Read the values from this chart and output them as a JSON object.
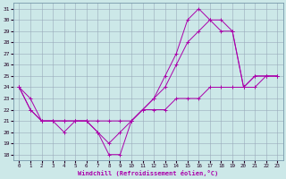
{
  "xlabel": "Windchill (Refroidissement éolien,°C)",
  "xlim": [
    -0.5,
    23.5
  ],
  "ylim": [
    17.5,
    31.5
  ],
  "yticks": [
    18,
    19,
    20,
    21,
    22,
    23,
    24,
    25,
    26,
    27,
    28,
    29,
    30,
    31
  ],
  "xticks": [
    0,
    1,
    2,
    3,
    4,
    5,
    6,
    7,
    8,
    9,
    10,
    11,
    12,
    13,
    14,
    15,
    16,
    17,
    18,
    19,
    20,
    21,
    22,
    23
  ],
  "bg_color": "#cce8e8",
  "line_color": "#aa00aa",
  "grid_color": "#99aabb",
  "lines": [
    {
      "x": [
        0,
        1,
        2,
        3,
        4,
        5,
        6,
        7,
        8,
        9,
        10,
        11,
        12,
        13,
        14,
        15,
        16,
        17,
        18,
        19,
        20,
        21,
        22,
        23
      ],
      "y": [
        24,
        23,
        21,
        21,
        21,
        21,
        21,
        20,
        18,
        18,
        21,
        22,
        23,
        25,
        27,
        30,
        31,
        30,
        30,
        29,
        24,
        25,
        25,
        25
      ]
    },
    {
      "x": [
        0,
        1,
        2,
        3,
        4,
        5,
        6,
        7,
        8,
        9,
        10,
        11,
        12,
        13,
        14,
        15,
        16,
        17,
        18,
        19,
        20,
        21,
        22,
        23
      ],
      "y": [
        24,
        22,
        21,
        21,
        20,
        21,
        21,
        20,
        19,
        20,
        21,
        22,
        23,
        24,
        26,
        28,
        29,
        30,
        29,
        29,
        24,
        25,
        25,
        25
      ]
    },
    {
      "x": [
        0,
        1,
        2,
        3,
        4,
        5,
        6,
        7,
        8,
        9,
        10,
        11,
        12,
        13,
        14,
        15,
        16,
        17,
        18,
        19,
        20,
        21,
        22,
        23
      ],
      "y": [
        24,
        22,
        21,
        21,
        21,
        21,
        21,
        21,
        21,
        21,
        21,
        22,
        22,
        22,
        23,
        23,
        23,
        24,
        24,
        24,
        24,
        24,
        25,
        25
      ]
    }
  ]
}
